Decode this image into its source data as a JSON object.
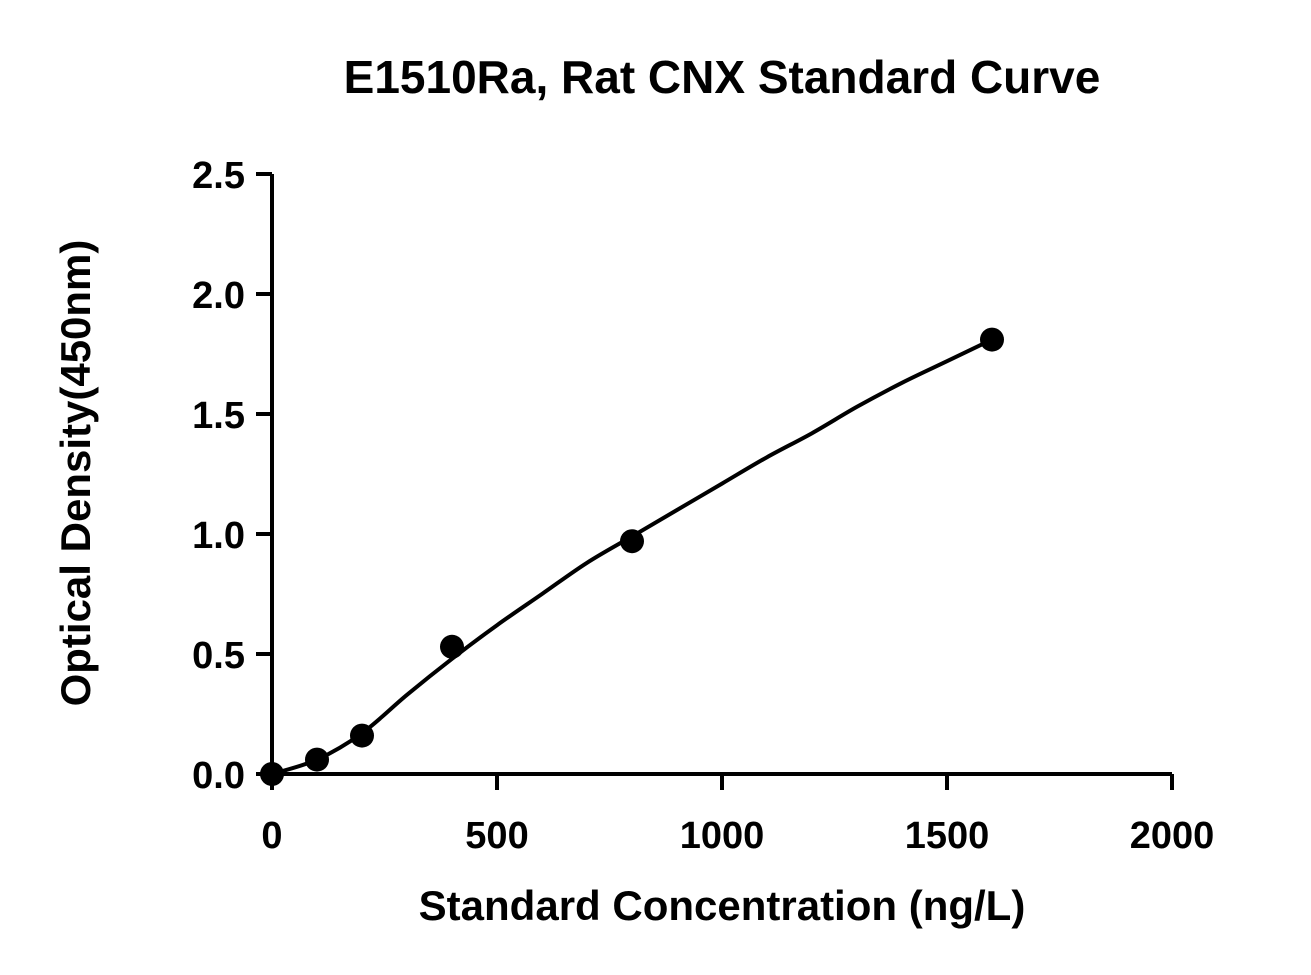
{
  "chart_data": {
    "type": "scatter",
    "title": "E1510Ra, Rat CNX Standard Curve",
    "xlabel": "Standard Concentration (ng/L)",
    "ylabel": "Optical Density(450nm)",
    "xlim": [
      0,
      2000
    ],
    "ylim": [
      0,
      2.5
    ],
    "xticks": [
      0,
      500,
      1000,
      1500,
      2000
    ],
    "xtick_labels": [
      "0",
      "500",
      "1000",
      "1500",
      "2000"
    ],
    "yticks": [
      0,
      0.5,
      1.0,
      1.5,
      2.0,
      2.5
    ],
    "ytick_labels": [
      "0.0",
      "0.5",
      "1.0",
      "1.5",
      "2.0",
      "2.5"
    ],
    "grid": false,
    "legend": "none",
    "series": [
      {
        "kind": "points",
        "x": [
          0,
          100,
          200,
          400,
          800,
          1600
        ],
        "y": [
          0.0,
          0.06,
          0.16,
          0.53,
          0.97,
          1.81
        ]
      },
      {
        "kind": "fitted-curve",
        "x": [
          0,
          100,
          200,
          300,
          400,
          500,
          600,
          700,
          800,
          900,
          1000,
          1100,
          1200,
          1300,
          1400,
          1500,
          1600
        ],
        "y": [
          0.0,
          0.06,
          0.17,
          0.33,
          0.48,
          0.62,
          0.75,
          0.88,
          0.99,
          1.1,
          1.21,
          1.32,
          1.42,
          1.53,
          1.63,
          1.72,
          1.81
        ]
      }
    ],
    "colors": {
      "points": "#000000",
      "curve": "#000000",
      "axes": "#000000"
    }
  }
}
